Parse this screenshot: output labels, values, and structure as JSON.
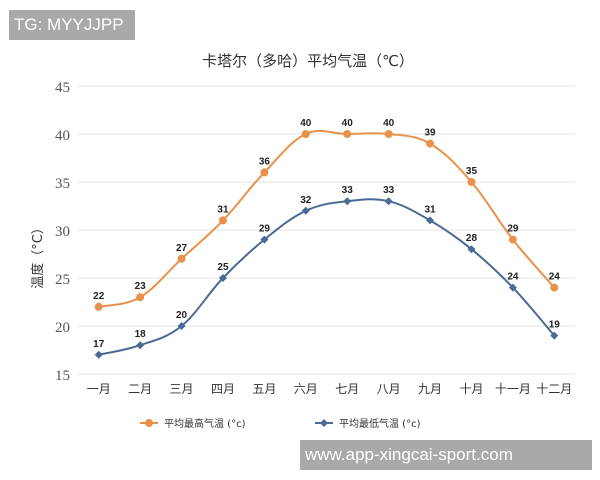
{
  "watermarks": {
    "top_left": "TG: MYYJJPP",
    "bottom_right": "www.app-xingcai-sport.com"
  },
  "chart_data": {
    "type": "line",
    "title": "卡塔尔（多哈）平均气温（℃）",
    "xlabel": "",
    "ylabel": "温度（°C）",
    "ylim": [
      15,
      45
    ],
    "yticks": [
      15,
      20,
      25,
      30,
      35,
      40,
      45
    ],
    "grid": true,
    "legend": "bottom",
    "smooth": true,
    "data_labels": true,
    "categories": [
      "一月",
      "二月",
      "三月",
      "四月",
      "五月",
      "六月",
      "七月",
      "八月",
      "九月",
      "十月",
      "十一月",
      "十二月"
    ],
    "series": [
      {
        "name": "平均最高气温 (°c)",
        "color": "#E8914A",
        "marker": "circle",
        "values": [
          22,
          23,
          27,
          31,
          36,
          40,
          40,
          40,
          39,
          35,
          29,
          24
        ]
      },
      {
        "name": "平均最低气温 (°c)",
        "color": "#4A6A96",
        "marker": "diamond",
        "values": [
          17,
          18,
          20,
          25,
          29,
          32,
          33,
          33,
          31,
          28,
          24,
          19
        ]
      }
    ]
  }
}
